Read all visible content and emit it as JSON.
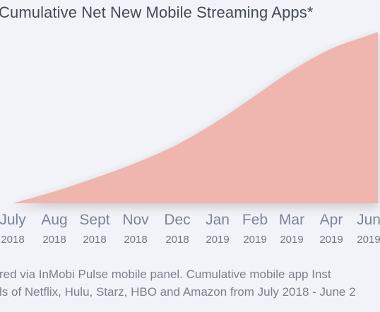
{
  "chart_data": {
    "type": "area",
    "title": "Cumulative Net New Mobile Streaming Apps*",
    "xlabel": "",
    "ylabel": "",
    "categories": [
      {
        "month": "July",
        "year": "2018"
      },
      {
        "month": "Aug",
        "year": "2018"
      },
      {
        "month": "Sept",
        "year": "2018"
      },
      {
        "month": "Nov",
        "year": "2018"
      },
      {
        "month": "Dec",
        "year": "2018"
      },
      {
        "month": "Jan",
        "year": "2019"
      },
      {
        "month": "Feb",
        "year": "2019"
      },
      {
        "month": "Mar",
        "year": "2019"
      },
      {
        "month": "Apr",
        "year": "2019"
      },
      {
        "month": "Jun",
        "year": "2019"
      }
    ],
    "values": [
      0,
      7,
      15,
      24,
      35,
      49,
      64,
      79,
      92,
      100
    ],
    "ylim": [
      0,
      100
    ],
    "grid": false,
    "legend": "none",
    "fill_color": "#efb6ae"
  },
  "footnote": {
    "line1": "red via InMobi Pulse mobile panel. Cumulative mobile app Inst",
    "line2": "ls of Netflix, Hulu, Starz, HBO and Amazon from July 2018 - June 2"
  }
}
